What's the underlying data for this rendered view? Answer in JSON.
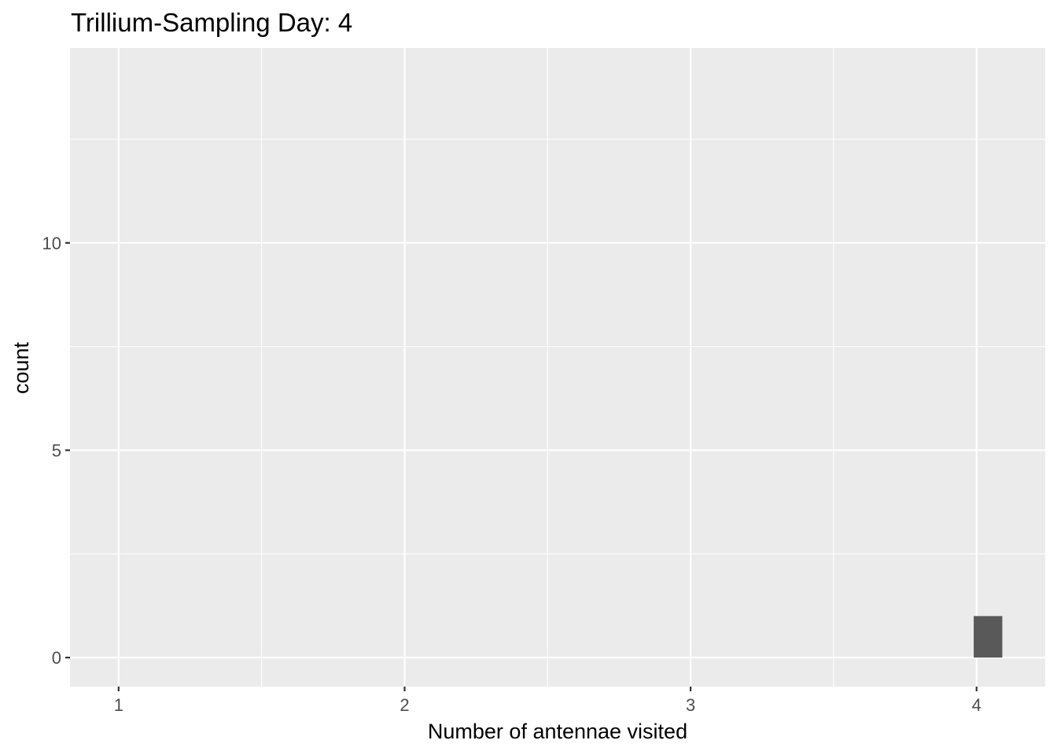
{
  "chart_data": {
    "type": "bar",
    "title": "Trillium-Sampling Day: 4",
    "xlabel": "Number of antennae visited",
    "ylabel": "count",
    "x_ticks": [
      "1",
      "2",
      "3",
      "4"
    ],
    "y_ticks": [
      "0",
      "5",
      "10"
    ],
    "xlim": [
      0.83,
      4.24
    ],
    "ylim": [
      -0.7,
      14.7
    ],
    "bars": [
      {
        "x": 4.04,
        "width": 0.1,
        "count": 1
      }
    ],
    "bar_color": "#595959",
    "panel_background": "#ebebeb",
    "grid_color": "#ffffff",
    "grid": true,
    "legend": "none"
  }
}
